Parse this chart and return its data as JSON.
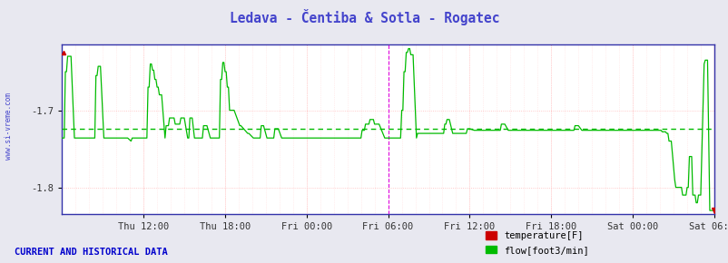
{
  "title": "Ledava - Čentiba & Sotla - Rogatec",
  "title_color": "#4444cc",
  "bg_color": "#e8e8f0",
  "plot_bg_color": "#ffffff",
  "xlabel_color": "#333333",
  "ylim": [
    -1.835,
    -1.615
  ],
  "xlim_max": 576,
  "x_tick_positions": [
    72,
    144,
    216,
    288,
    360,
    432,
    504,
    576
  ],
  "x_tick_labels": [
    "Thu 12:00",
    "Thu 18:00",
    "Fri 00:00",
    "Fri 06:00",
    "Fri 12:00",
    "Fri 18:00",
    "Sat 00:00",
    "Sat 06:00"
  ],
  "flow_color": "#00bb00",
  "flow_avg_color": "#00bb00",
  "flow_avg_y": -1.724,
  "temp_color": "#cc0000",
  "legend_temp_label": "temperature[F]",
  "legend_flow_label": "flow[foot3/min]",
  "footer_text": "CURRENT AND HISTORICAL DATA",
  "footer_color": "#0000cc",
  "left_label": "www.si-vreme.com",
  "left_label_color": "#4444cc",
  "border_color": "#3333aa",
  "hgrid_color": "#ffbbbb",
  "vgrid_color": "#ffbbbb",
  "vgrid_minor_color": "#ffdddd",
  "magenta_vline_x": 288,
  "red_dot_x": 576,
  "base_flow": -1.736,
  "n_points": 576
}
